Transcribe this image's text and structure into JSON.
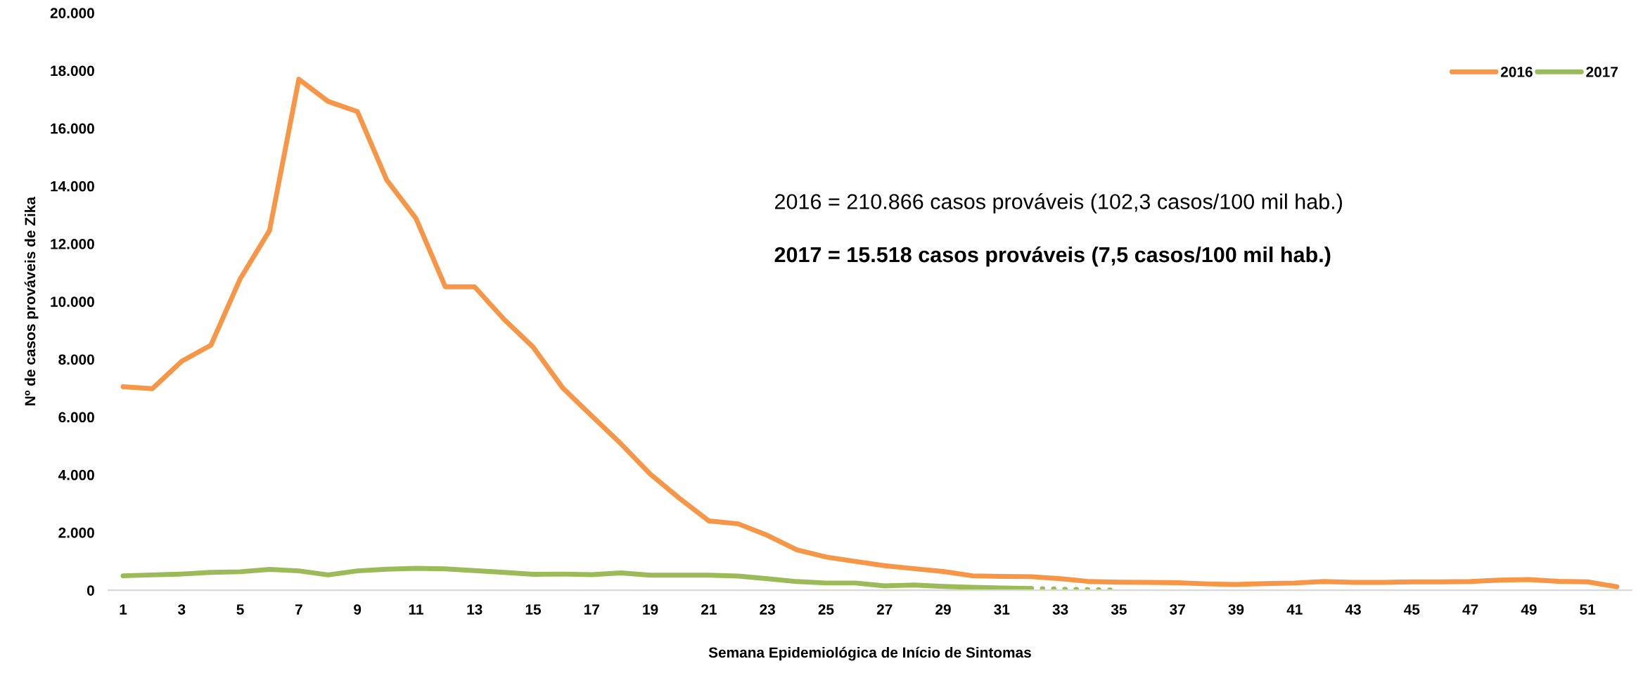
{
  "chart_data": {
    "type": "line",
    "xlabel": "Semana Epidemiológica de Início de Sintomas",
    "ylabel": "Nº de casos prováveis de Zika",
    "x": [
      1,
      2,
      3,
      4,
      5,
      6,
      7,
      8,
      9,
      10,
      11,
      12,
      13,
      14,
      15,
      16,
      17,
      18,
      19,
      20,
      21,
      22,
      23,
      24,
      25,
      26,
      27,
      28,
      29,
      30,
      31,
      32,
      33,
      34,
      35,
      36,
      37,
      38,
      39,
      40,
      41,
      42,
      43,
      44,
      45,
      46,
      47,
      48,
      49,
      50,
      51,
      52
    ],
    "series": [
      {
        "name": "2016",
        "color": "#f79646",
        "values": [
          7050,
          6980,
          7930,
          8490,
          10790,
          12460,
          17700,
          16930,
          16580,
          14210,
          12880,
          10510,
          10510,
          9390,
          8420,
          7020,
          6040,
          5070,
          4020,
          3180,
          2400,
          2300,
          1900,
          1400,
          1150,
          1000,
          850,
          750,
          650,
          500,
          480,
          470,
          400,
          300,
          280,
          270,
          260,
          220,
          200,
          230,
          250,
          300,
          270,
          270,
          290,
          290,
          300,
          350,
          370,
          310,
          290,
          120
        ]
      },
      {
        "name": "2017",
        "color": "#9bbb59",
        "values": [
          500,
          530,
          560,
          620,
          640,
          720,
          670,
          530,
          670,
          730,
          760,
          740,
          680,
          620,
          550,
          560,
          540,
          600,
          520,
          520,
          520,
          490,
          400,
          300,
          250,
          250,
          150,
          180,
          130,
          100,
          80,
          60,
          null,
          null,
          null,
          null,
          null,
          null,
          null,
          null,
          null,
          null,
          null,
          null,
          null,
          null,
          null,
          null,
          null,
          null,
          null,
          null
        ]
      },
      {
        "color": "#9bbb59",
        "line_style": "dotted",
        "values": [
          null,
          null,
          null,
          null,
          null,
          null,
          null,
          null,
          null,
          null,
          null,
          null,
          null,
          null,
          null,
          null,
          null,
          null,
          null,
          null,
          null,
          null,
          null,
          null,
          null,
          null,
          null,
          null,
          null,
          null,
          null,
          60,
          40,
          20,
          10,
          null,
          null,
          null,
          null,
          null,
          null,
          null,
          null,
          null,
          null,
          null,
          null,
          null,
          null,
          null,
          null,
          null
        ]
      }
    ],
    "xlim": [
      0.5,
      52.5
    ],
    "xticks": [
      1,
      3,
      5,
      7,
      9,
      11,
      13,
      15,
      17,
      19,
      21,
      23,
      25,
      27,
      29,
      31,
      33,
      35,
      37,
      39,
      41,
      43,
      45,
      47,
      49,
      51
    ],
    "ylim": [
      0,
      20000
    ],
    "yticks": [
      0,
      {
        "value": 2000,
        "label": "2.000"
      },
      {
        "value": 4000,
        "label": "4.000"
      },
      {
        "value": 6000,
        "label": "6.000"
      },
      {
        "value": 8000,
        "label": "8.000"
      },
      {
        "value": 10000,
        "label": "10.000"
      },
      {
        "value": 12000,
        "label": "12.000"
      },
      {
        "value": 14000,
        "label": "14.000"
      },
      {
        "value": 16000,
        "label": "16.000"
      },
      {
        "value": 18000,
        "label": "18.000"
      },
      {
        "value": 20000,
        "label": "20.000"
      }
    ],
    "annotations": [
      "2016 = 210.866 casos prováveis (102,3 casos/100 mil hab.)",
      "2017 = 15.518 casos prováveis (7,5 casos/100 mil hab.)"
    ],
    "grid": false,
    "legend": "top right",
    "line_style": "solid",
    "marker": "none"
  }
}
